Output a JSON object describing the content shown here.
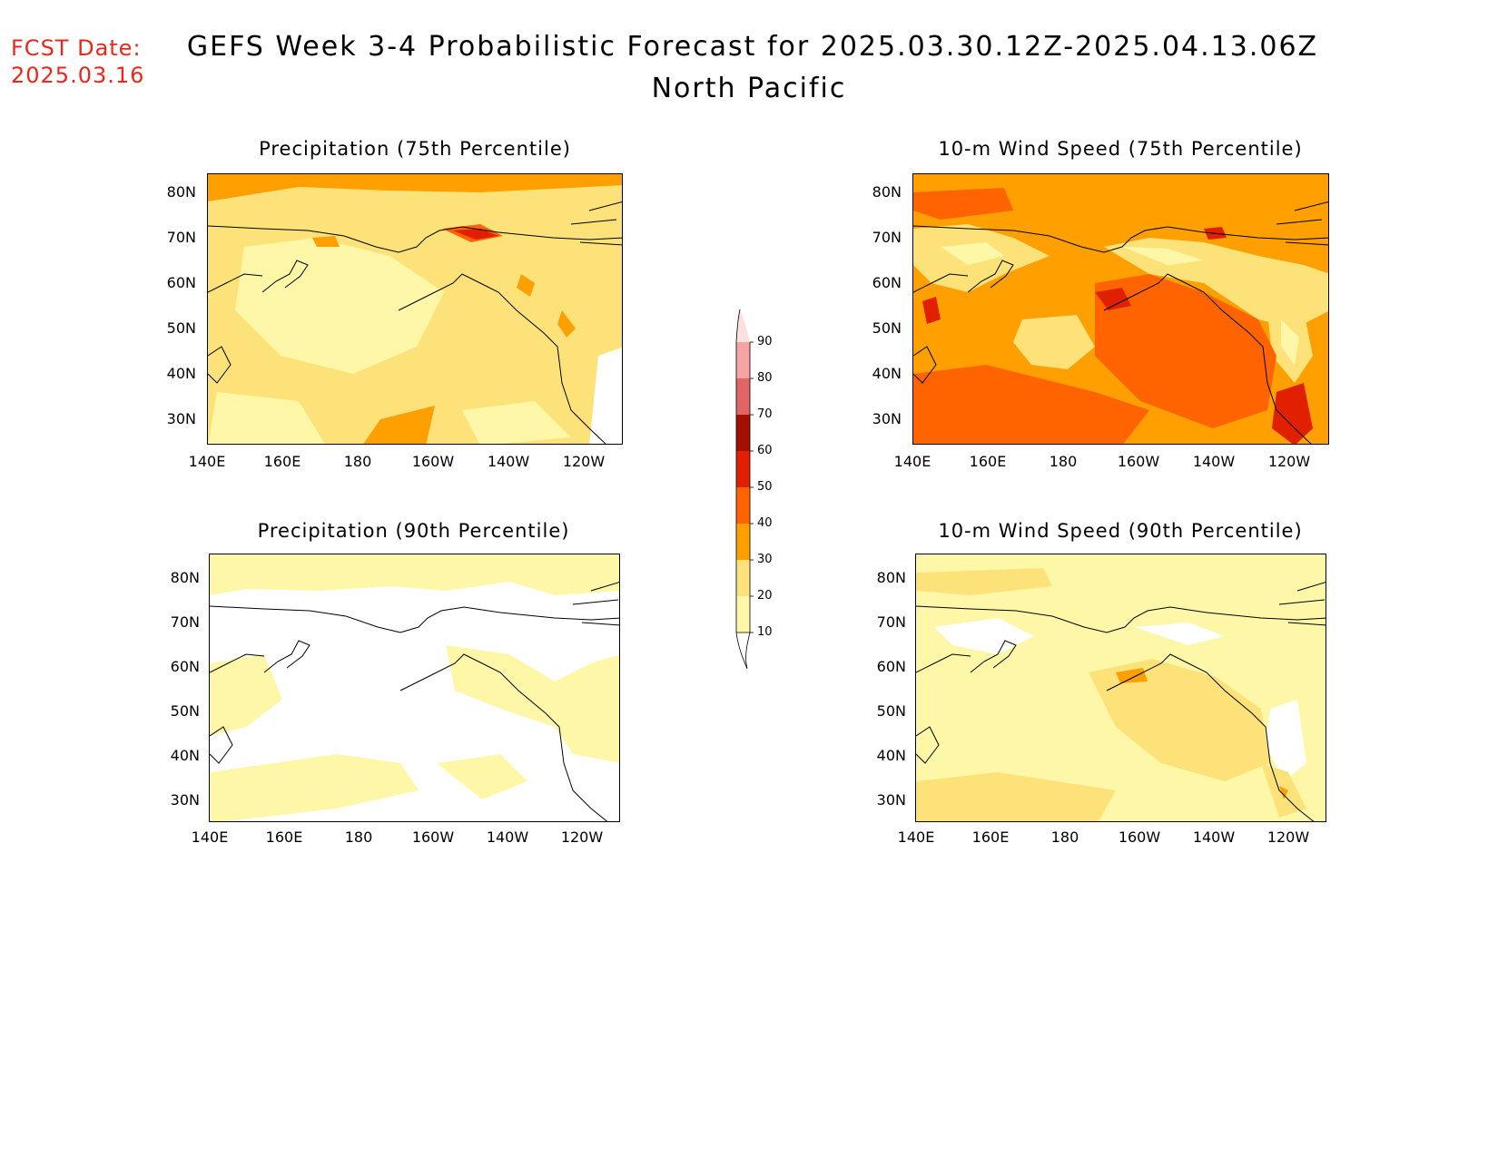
{
  "header": {
    "fcst_label": "FCST Date:",
    "fcst_date": "2025.03.16",
    "title": "GEFS Week 3-4 Probabilistic Forecast for 2025.03.30.12Z-2025.04.13.06Z",
    "subtitle": "North Pacific"
  },
  "axes": {
    "lat_labels": [
      "80N",
      "70N",
      "60N",
      "50N",
      "40N",
      "30N"
    ],
    "lon_labels": [
      "140E",
      "160E",
      "180",
      "160W",
      "140W",
      "120W"
    ]
  },
  "panels": [
    {
      "title": "Precipitation (75th Percentile)"
    },
    {
      "title": "10-m Wind Speed (75th Percentile)"
    },
    {
      "title": "Precipitation (90th Percentile)"
    },
    {
      "title": "10-m Wind Speed (90th Percentile)"
    }
  ],
  "colorbar": {
    "levels": [
      "90",
      "80",
      "70",
      "60",
      "50",
      "40",
      "30",
      "20",
      "10"
    ],
    "colors": [
      "#fde0e0",
      "#f5a3a3",
      "#e06666",
      "#a31000",
      "#e02000",
      "#ff6400",
      "#ffa000",
      "#fde27a",
      "#fff7a8"
    ]
  },
  "palette": {
    "white": "#ffffff",
    "c10": "#fff7a8",
    "c20": "#fde27a",
    "c30": "#ffa000",
    "c40": "#ff6400",
    "c50": "#e02000",
    "c60": "#a31000",
    "accent_red": "#e8281e"
  }
}
